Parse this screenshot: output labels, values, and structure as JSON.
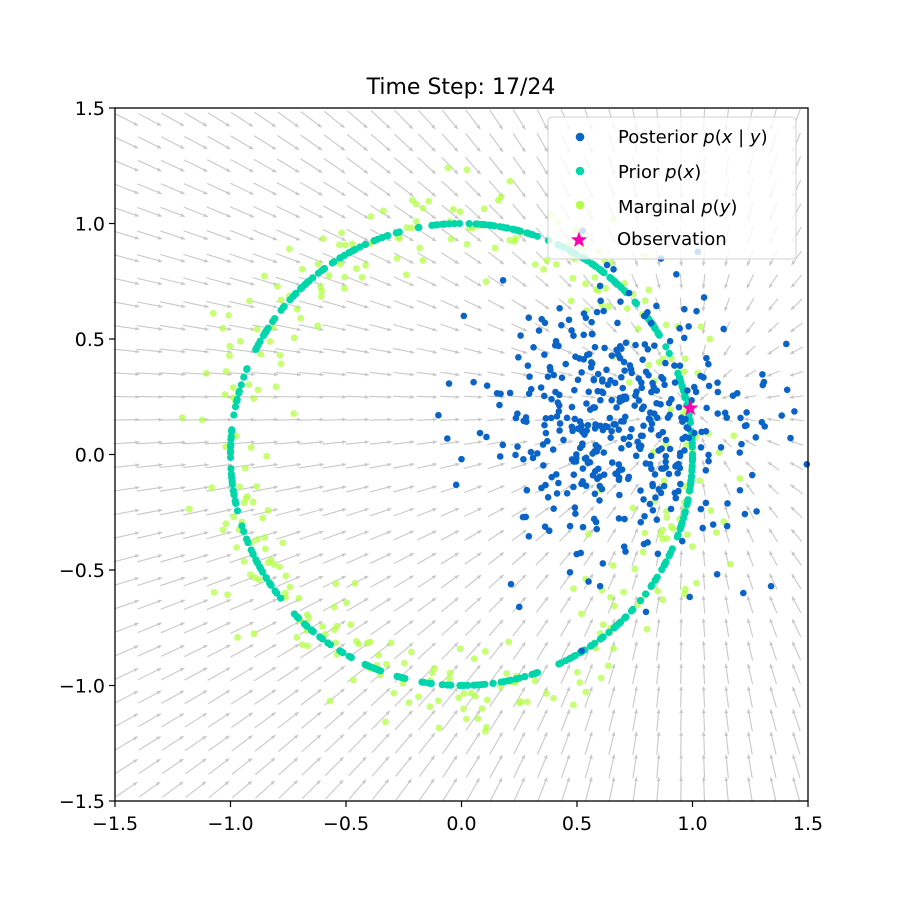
{
  "chart_data": {
    "type": "scatter",
    "title": "Time Step: 17/24",
    "xlim": [
      -1.5,
      1.5
    ],
    "ylim": [
      -1.5,
      1.5
    ],
    "xticks": [
      -1.5,
      -1.0,
      -0.5,
      0.0,
      0.5,
      1.0,
      1.5
    ],
    "yticks": [
      -1.5,
      -1.0,
      -0.5,
      0.0,
      0.5,
      1.0,
      1.5
    ],
    "xtick_labels": [
      "−1.5",
      "−1.0",
      "−0.5",
      "0.0",
      "0.5",
      "1.0",
      "1.5"
    ],
    "ytick_labels": [
      "−1.5",
      "−1.0",
      "−0.5",
      "0.0",
      "0.5",
      "1.0",
      "1.5"
    ],
    "grid": false,
    "legend_position": "top-right",
    "vector_field": {
      "color": "#c8c8c8",
      "description_shown": "quiver arrows pointing toward the observation region",
      "target": [
        0.99,
        0.2
      ]
    },
    "series": [
      {
        "name": "Posterior p(x | y)",
        "legend_parts": [
          "Posterior ",
          "p",
          "(",
          "x",
          " | ",
          "y",
          ")"
        ],
        "color": "#0a64c8",
        "marker": "circle",
        "distribution": {
          "center": [
            0.68,
            0.15
          ],
          "spread": [
            0.28,
            0.26
          ],
          "count": 420
        },
        "x": [
          0.52,
          0.6,
          0.71,
          0.85,
          0.93,
          0.42,
          0.38,
          1.05,
          1.15,
          1.3,
          1.41,
          0.25,
          0.63,
          0.55,
          1.22,
          -0.1,
          0.01,
          0.0,
          0.6,
          0.47,
          1.34
        ],
        "y": [
          -0.85,
          -0.57,
          -0.42,
          -0.43,
          0.78,
          0.47,
          -0.33,
          0.68,
          -0.31,
          0.14,
          0.28,
          -0.66,
          0.82,
          -0.55,
          -0.6,
          0.17,
          0.6,
          -0.02,
          0.73,
          -0.31,
          -0.57
        ]
      },
      {
        "name": "Prior p(x)",
        "legend_parts": [
          "Prior ",
          "p",
          "(",
          "x",
          ")"
        ],
        "color": "#00d6aa",
        "marker": "circle",
        "distribution": {
          "shape": "unit circle",
          "radius": 1.0,
          "count": 380
        }
      },
      {
        "name": "Marginal p(y)",
        "legend_parts": [
          "Marginal ",
          "p",
          "(",
          "y",
          ")"
        ],
        "color": "#b4ff46",
        "marker": "circle",
        "distribution": {
          "shape": "noisy unit circle",
          "radius": 1.0,
          "noise": 0.1,
          "count": 330
        }
      },
      {
        "name": "Observation",
        "legend_parts": [
          "Observation"
        ],
        "color": "#ff00b4",
        "marker": "star",
        "x": [
          0.99
        ],
        "y": [
          0.2
        ]
      }
    ]
  }
}
